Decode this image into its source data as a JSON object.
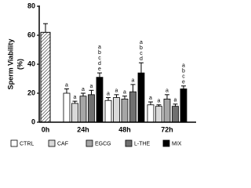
{
  "chart_data": {
    "type": "bar",
    "ylabel": "Sperm Viability",
    "ylabel_unit": "(%)",
    "categories": [
      "0h",
      "24h",
      "48h",
      "72h"
    ],
    "baseline": {
      "value": 62,
      "error": 6,
      "color": "#ffffff"
    },
    "series": [
      {
        "name": "CTRL",
        "color": "#ffffff",
        "values": [
          null,
          20,
          15,
          12
        ],
        "errors": [
          null,
          3,
          2,
          2
        ],
        "letters": [
          null,
          [
            "a"
          ],
          [
            "a"
          ],
          [
            "a"
          ]
        ]
      },
      {
        "name": "CAF",
        "color": "#d9d9d9",
        "values": [
          null,
          13,
          17,
          11
        ],
        "errors": [
          null,
          1.5,
          2,
          1
        ],
        "letters": [
          null,
          [
            "a"
          ],
          [
            "a"
          ],
          [
            "a"
          ]
        ]
      },
      {
        "name": "EGCG",
        "color": "#a6a6a6",
        "values": [
          null,
          18,
          16,
          16
        ],
        "errors": [
          null,
          2,
          2,
          3
        ],
        "letters": [
          null,
          [
            "a"
          ],
          [
            "a"
          ],
          [
            "a"
          ]
        ]
      },
      {
        "name": "L-THE",
        "color": "#707070",
        "values": [
          null,
          19,
          21,
          11
        ],
        "errors": [
          null,
          3,
          5,
          1.5
        ],
        "letters": [
          null,
          [
            "a"
          ],
          [
            "a"
          ],
          [
            "a"
          ]
        ]
      },
      {
        "name": "MIX",
        "color": "#000000",
        "values": [
          null,
          31,
          34,
          23
        ],
        "errors": [
          null,
          3,
          7,
          2
        ],
        "letters": [
          null,
          [
            "a",
            "b",
            "c",
            "d",
            "e"
          ],
          [
            "a",
            "b",
            "c",
            "d"
          ],
          [
            "a",
            "b",
            "c",
            "e"
          ]
        ]
      }
    ],
    "ylim": [
      0,
      80
    ],
    "yticks": [
      0,
      20,
      40,
      60,
      80
    ]
  }
}
